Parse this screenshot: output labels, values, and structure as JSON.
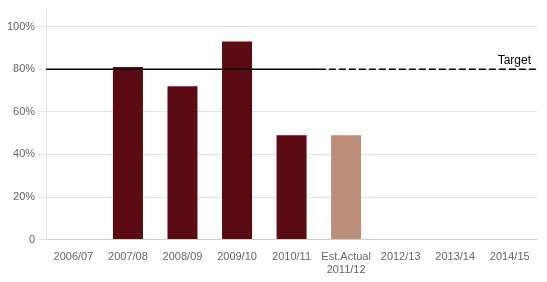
{
  "chart_data": {
    "type": "bar",
    "categories": [
      "2006/07",
      "2007/08",
      "2008/09",
      "2009/10",
      "2010/11",
      "Est.Actual\n2011/12",
      "2012/13",
      "2013/14",
      "2014/15"
    ],
    "values": [
      0,
      0.81,
      0.72,
      0.93,
      0.49,
      0.49,
      0,
      0,
      0
    ],
    "colors": [
      "#5c0a14",
      "#5c0a14",
      "#5c0a14",
      "#5c0a14",
      "#5c0a14",
      "#bc8f7a",
      "#ffffff",
      "#ffffff",
      "#ffffff"
    ],
    "ylim": [
      0,
      1.08
    ],
    "yticks": [
      0,
      {
        "value": 0.2,
        "label": "20%"
      },
      {
        "value": 0.4,
        "label": "40%"
      },
      {
        "value": 0.6,
        "label": "60%"
      },
      {
        "value": 0.8,
        "label": "80%"
      },
      {
        "value": 1.0,
        "label": "100%"
      }
    ],
    "grid": true,
    "annotations": [
      {
        "text": "Target",
        "y": 0.8,
        "color": "#000000"
      }
    ]
  }
}
